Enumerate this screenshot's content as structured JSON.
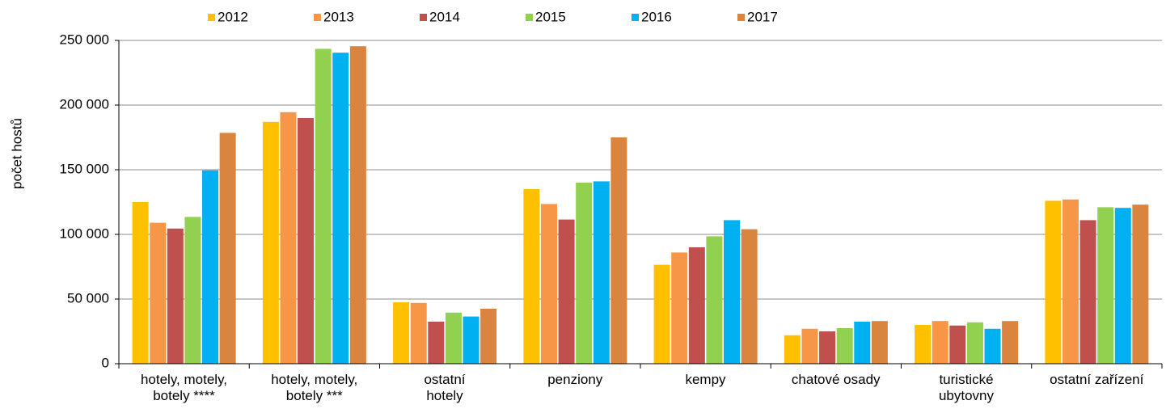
{
  "chart_data": {
    "type": "bar",
    "y_label": "počet hostů",
    "categories": [
      "hotely, motely,\nbotely ****",
      "hotely, motely,\nbotely ***",
      "ostatní\nhotely",
      "penziony",
      "kempy",
      "chatové osady",
      "turistické\nubytovny",
      "ostatní zařízení"
    ],
    "series": [
      {
        "name": "2012",
        "color": "#FFC000",
        "values": [
          125000,
          187000,
          47500,
          135000,
          76500,
          22000,
          30000,
          126000
        ]
      },
      {
        "name": "2013",
        "color": "#F79646",
        "values": [
          109000,
          194500,
          47000,
          123500,
          86000,
          27000,
          33000,
          127000
        ]
      },
      {
        "name": "2014",
        "color": "#C0504D",
        "values": [
          104500,
          190000,
          32500,
          111500,
          90000,
          25000,
          29500,
          111000
        ]
      },
      {
        "name": "2015",
        "color": "#92D050",
        "values": [
          113500,
          243500,
          39500,
          140000,
          98500,
          27500,
          32000,
          121000
        ]
      },
      {
        "name": "2016",
        "color": "#00B0F0",
        "values": [
          149500,
          240500,
          36500,
          141000,
          111000,
          32500,
          27000,
          120500
        ]
      },
      {
        "name": "2017",
        "color": "#D9843F",
        "values": [
          178500,
          245500,
          42500,
          175000,
          104000,
          33000,
          33000,
          123000
        ]
      }
    ],
    "ylim": [
      0,
      250000
    ],
    "yticks": [
      0,
      {
        "value": 50000,
        "label": "50 000"
      },
      {
        "value": 100000,
        "label": "100 000"
      },
      {
        "value": 150000,
        "label": "150 000"
      },
      {
        "value": 200000,
        "label": "200 000"
      },
      {
        "value": 250000,
        "label": "250 000"
      }
    ],
    "grid": true,
    "legend": "top"
  }
}
